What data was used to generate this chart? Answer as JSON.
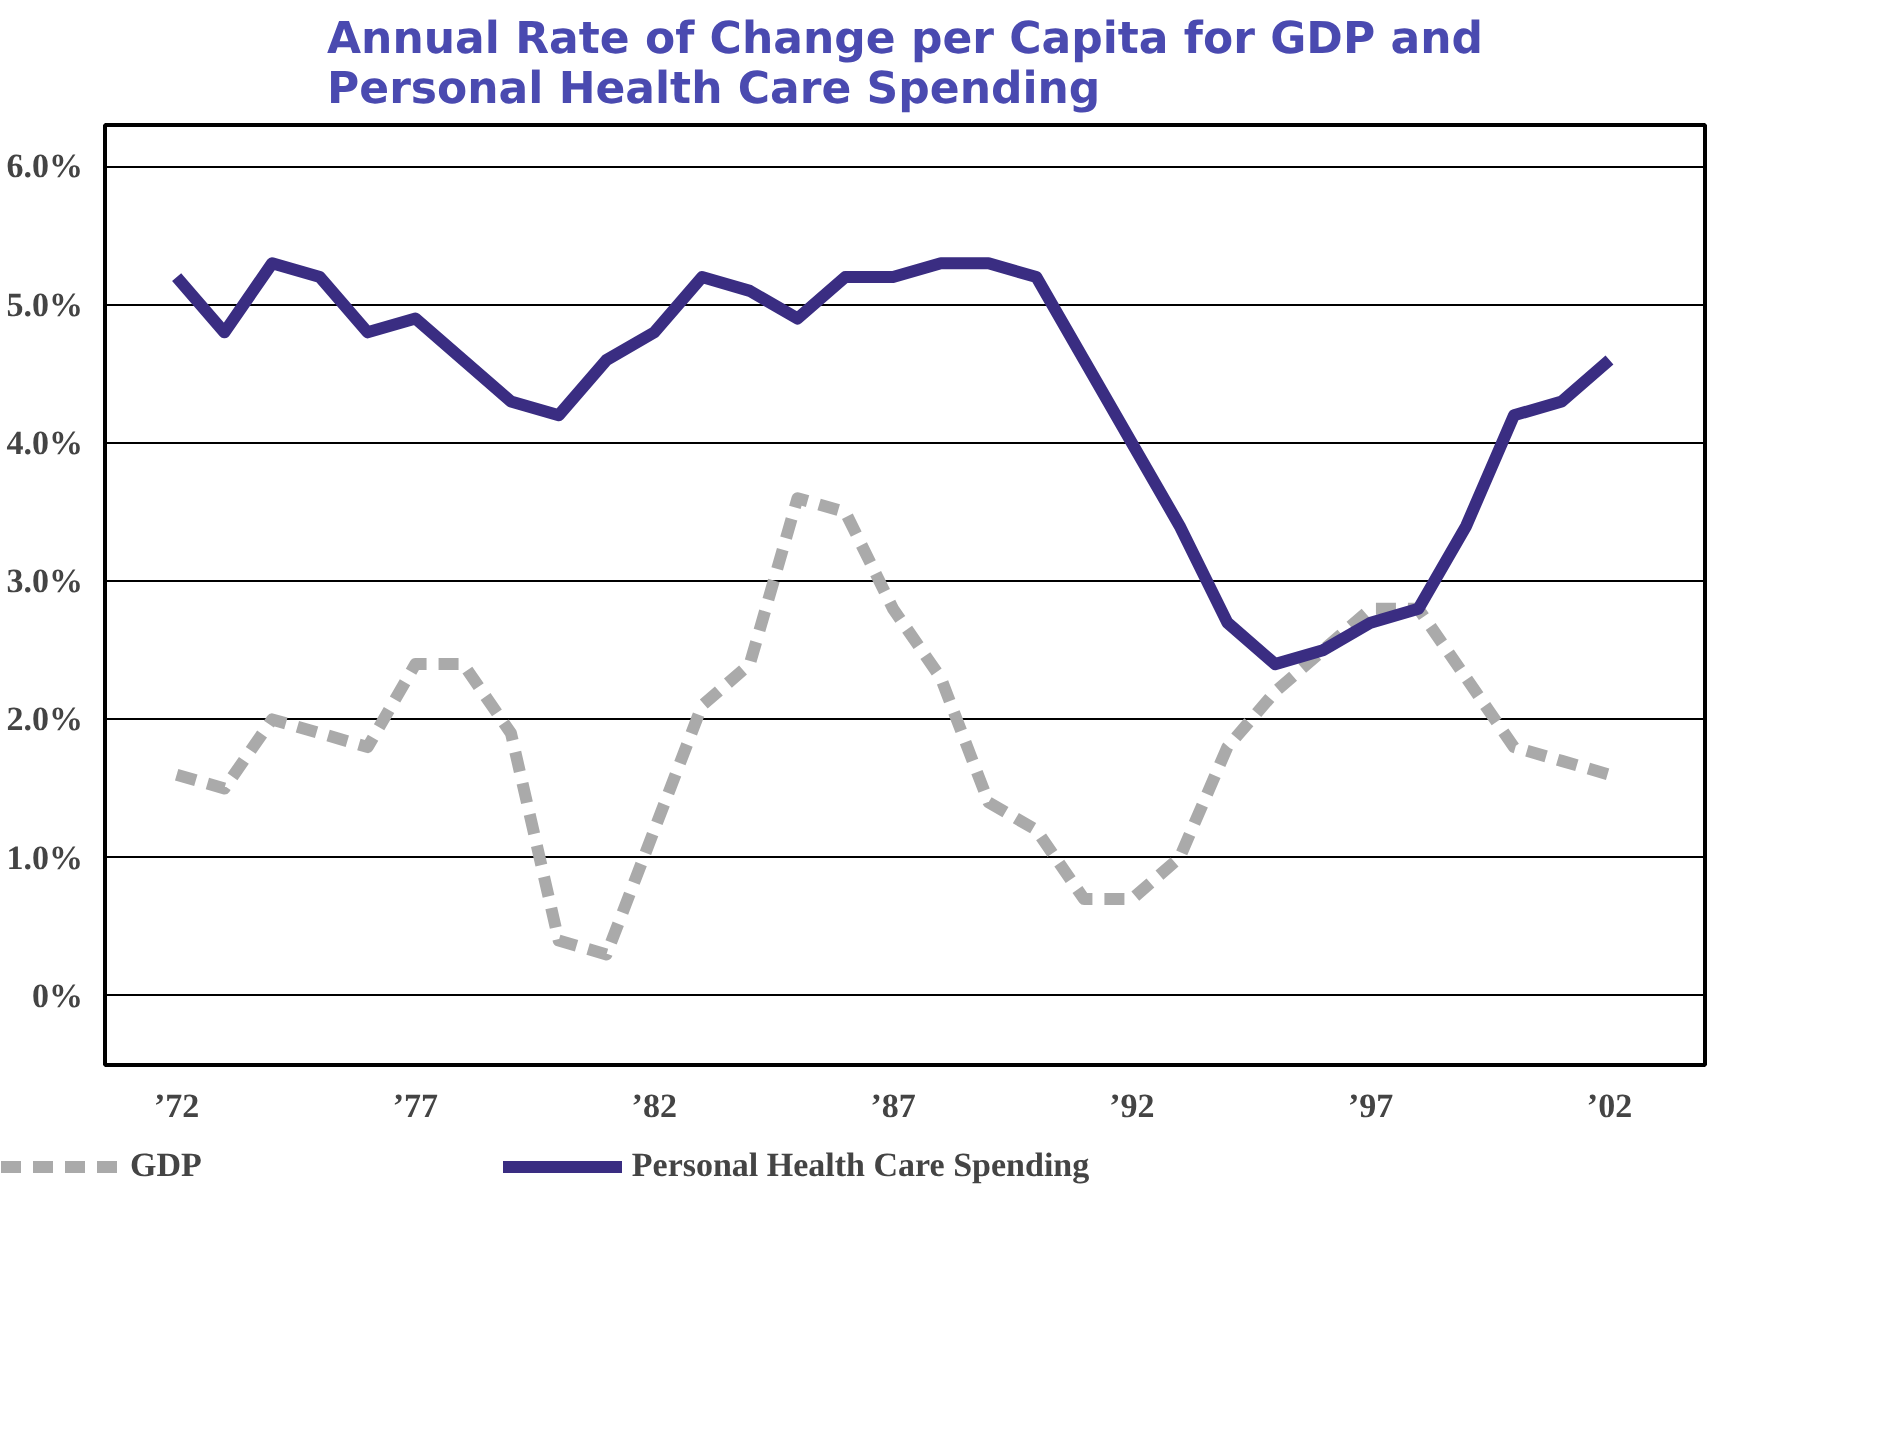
{
  "chart_data": {
    "type": "line",
    "title": "Annual Rate of Change per Capita for GDP and Personal Health Care Spending",
    "x": [
      1972,
      1973,
      1974,
      1975,
      1976,
      1977,
      1978,
      1979,
      1980,
      1981,
      1982,
      1983,
      1984,
      1985,
      1986,
      1987,
      1988,
      1989,
      1990,
      1991,
      1992,
      1993,
      1994,
      1995,
      1996,
      1997,
      1998,
      1999,
      2000,
      2001,
      2002
    ],
    "series": [
      {
        "name": "GDP",
        "color": "#aaaaaa",
        "line_style": "dashed",
        "values": [
          1.6,
          1.5,
          2.0,
          1.9,
          1.8,
          2.4,
          2.4,
          1.9,
          0.4,
          0.3,
          1.2,
          2.1,
          2.4,
          3.6,
          3.5,
          2.8,
          2.3,
          1.4,
          1.2,
          0.7,
          0.7,
          1.0,
          1.8,
          2.2,
          2.5,
          2.8,
          2.8,
          2.3,
          1.8,
          1.7,
          1.6
        ]
      },
      {
        "name": "Personal Health Care Spending",
        "color": "#3a2d82",
        "line_style": "solid",
        "values": [
          5.2,
          4.8,
          5.3,
          5.2,
          4.8,
          4.9,
          4.6,
          4.3,
          4.2,
          4.6,
          4.8,
          5.2,
          5.1,
          4.9,
          5.2,
          5.2,
          5.3,
          5.3,
          5.2,
          4.6,
          4.0,
          3.4,
          2.7,
          2.4,
          2.5,
          2.7,
          2.8,
          3.4,
          4.2,
          4.3,
          4.6
        ]
      }
    ],
    "xlim": [
      1970.5,
      2004
    ],
    "ylim": [
      -0.5,
      6.3
    ],
    "xticks": [
      {
        "value": 1972,
        "label": "’72"
      },
      {
        "value": 1977,
        "label": "’77"
      },
      {
        "value": 1982,
        "label": "’82"
      },
      {
        "value": 1987,
        "label": "’87"
      },
      {
        "value": 1992,
        "label": "’92"
      },
      {
        "value": 1997,
        "label": "’97"
      },
      {
        "value": 2002,
        "label": "’02"
      }
    ],
    "yticks": [
      {
        "value": 0,
        "label": "0%"
      },
      {
        "value": 1,
        "label": "1.0%"
      },
      {
        "value": 2,
        "label": "2.0%"
      },
      {
        "value": 3,
        "label": "3.0%"
      },
      {
        "value": 4,
        "label": "4.0%"
      },
      {
        "value": 5,
        "label": "5.0%"
      },
      {
        "value": 6,
        "label": "6.0%"
      }
    ],
    "grid": "y",
    "legend": "bottom",
    "marker": "none"
  }
}
